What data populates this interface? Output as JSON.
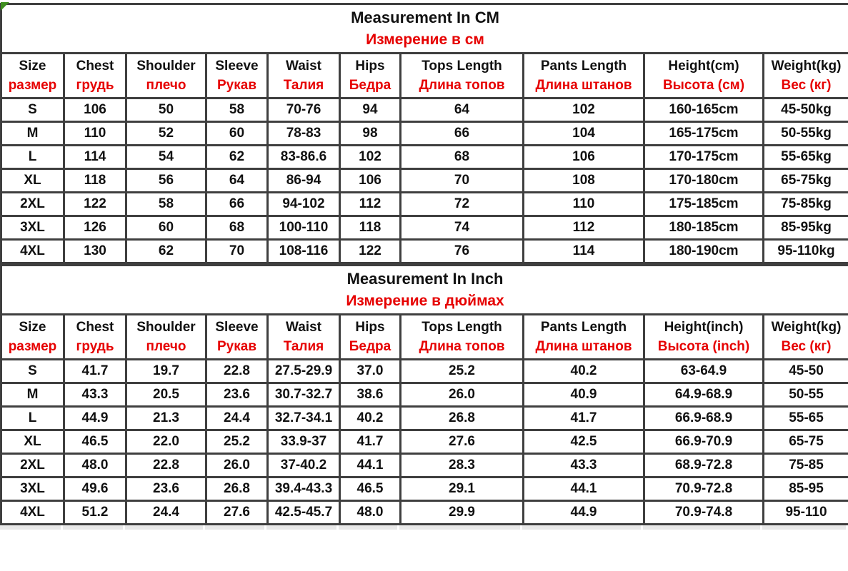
{
  "corner_marker_color": "#3f8f1f",
  "accent_red": "#e60000",
  "band_gray": "#e9e9e9",
  "tables": [
    {
      "title_en": "Measurement In CM",
      "title_ru": "Измерение в см",
      "columns": [
        {
          "en": "Size",
          "ru": "размер"
        },
        {
          "en": "Chest",
          "ru": "грудь"
        },
        {
          "en": "Shoulder",
          "ru": "плечо"
        },
        {
          "en": "Sleeve",
          "ru": "Рукав"
        },
        {
          "en": "Waist",
          "ru": "Талия"
        },
        {
          "en": "Hips",
          "ru": "Бедра"
        },
        {
          "en": "Tops Length",
          "ru": "Длина топов"
        },
        {
          "en": "Pants Length",
          "ru": "Длина штанов"
        },
        {
          "en": "Height(cm)",
          "ru": "Высота (см)"
        },
        {
          "en": "Weight(kg)",
          "ru": "Вес (кг)"
        }
      ],
      "rows": [
        [
          "S",
          "106",
          "50",
          "58",
          "70-76",
          "94",
          "64",
          "102",
          "160-165cm",
          "45-50kg"
        ],
        [
          "M",
          "110",
          "52",
          "60",
          "78-83",
          "98",
          "66",
          "104",
          "165-175cm",
          "50-55kg"
        ],
        [
          "L",
          "114",
          "54",
          "62",
          "83-86.6",
          "102",
          "68",
          "106",
          "170-175cm",
          "55-65kg"
        ],
        [
          "XL",
          "118",
          "56",
          "64",
          "86-94",
          "106",
          "70",
          "108",
          "170-180cm",
          "65-75kg"
        ],
        [
          "2XL",
          "122",
          "58",
          "66",
          "94-102",
          "112",
          "72",
          "110",
          "175-185cm",
          "75-85kg"
        ],
        [
          "3XL",
          "126",
          "60",
          "68",
          "100-110",
          "118",
          "74",
          "112",
          "180-185cm",
          "85-95kg"
        ],
        [
          "4XL",
          "130",
          "62",
          "70",
          "108-116",
          "122",
          "76",
          "114",
          "180-190cm",
          "95-110kg"
        ]
      ]
    },
    {
      "title_en": "Measurement In Inch",
      "title_ru": "Измерение в дюймах",
      "columns": [
        {
          "en": "Size",
          "ru": "размер"
        },
        {
          "en": "Chest",
          "ru": "грудь"
        },
        {
          "en": "Shoulder",
          "ru": "плечо"
        },
        {
          "en": "Sleeve",
          "ru": "Рукав"
        },
        {
          "en": "Waist",
          "ru": "Талия"
        },
        {
          "en": "Hips",
          "ru": "Бедра"
        },
        {
          "en": "Tops Length",
          "ru": "Длина топов"
        },
        {
          "en": "Pants Length",
          "ru": "Длина штанов"
        },
        {
          "en": "Height(inch)",
          "ru": "Высота (inch)"
        },
        {
          "en": "Weight(kg)",
          "ru": "Вес (кг)"
        }
      ],
      "rows": [
        [
          "S",
          "41.7",
          "19.7",
          "22.8",
          "27.5-29.9",
          "37.0",
          "25.2",
          "40.2",
          "63-64.9",
          "45-50"
        ],
        [
          "M",
          "43.3",
          "20.5",
          "23.6",
          "30.7-32.7",
          "38.6",
          "26.0",
          "40.9",
          "64.9-68.9",
          "50-55"
        ],
        [
          "L",
          "44.9",
          "21.3",
          "24.4",
          "32.7-34.1",
          "40.2",
          "26.8",
          "41.7",
          "66.9-68.9",
          "55-65"
        ],
        [
          "XL",
          "46.5",
          "22.0",
          "25.2",
          "33.9-37",
          "41.7",
          "27.6",
          "42.5",
          "66.9-70.9",
          "65-75"
        ],
        [
          "2XL",
          "48.0",
          "22.8",
          "26.0",
          "37-40.2",
          "44.1",
          "28.3",
          "43.3",
          "68.9-72.8",
          "75-85"
        ],
        [
          "3XL",
          "49.6",
          "23.6",
          "26.8",
          "39.4-43.3",
          "46.5",
          "29.1",
          "44.1",
          "70.9-72.8",
          "85-95"
        ],
        [
          "4XL",
          "51.2",
          "24.4",
          "27.6",
          "42.5-45.7",
          "48.0",
          "29.9",
          "44.9",
          "70.9-74.8",
          "95-110"
        ]
      ]
    }
  ]
}
